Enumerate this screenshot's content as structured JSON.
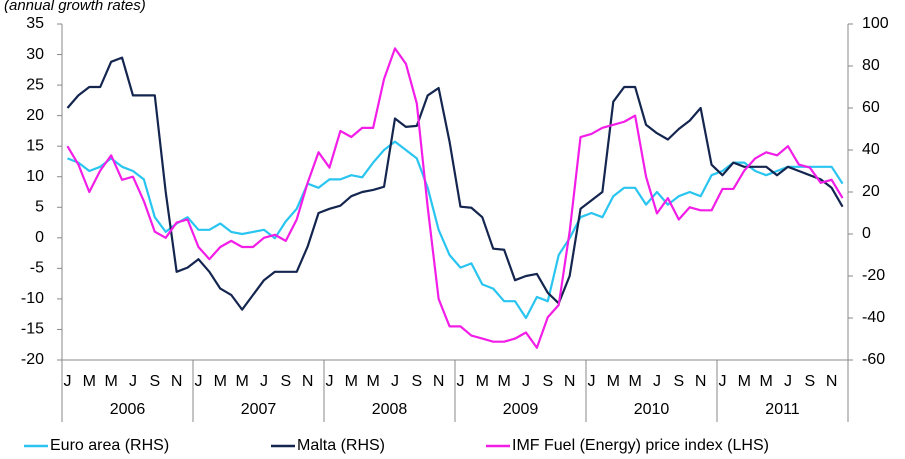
{
  "chart_data": {
    "type": "line",
    "subtitle": "(annual growth rates)",
    "categories": [
      "J",
      null,
      "M",
      null,
      "M",
      null,
      "J",
      null,
      "S",
      null,
      "N",
      null,
      "J",
      null,
      "M",
      null,
      "M",
      null,
      "J",
      null,
      "S",
      null,
      "N",
      null,
      "J",
      null,
      "M",
      null,
      "M",
      null,
      "J",
      null,
      "S",
      null,
      "N",
      null,
      "J",
      null,
      "M",
      null,
      "M",
      null,
      "J",
      null,
      "S",
      null,
      "N",
      null,
      "J",
      null,
      "M",
      null,
      "M",
      null,
      "J",
      null,
      "S",
      null,
      "N",
      null,
      "J",
      null,
      "M",
      null,
      "M",
      null,
      "J",
      null,
      "S",
      null,
      "N",
      null
    ],
    "groups": [
      "2006",
      "2007",
      "2008",
      "2009",
      "2010",
      "2011"
    ],
    "ylim": [
      -20,
      35
    ],
    "yticks": [
      -20,
      -15,
      -10,
      -5,
      0,
      5,
      10,
      15,
      20,
      25,
      30,
      35
    ],
    "y2lim": [
      -60,
      100
    ],
    "y2ticks": [
      -60,
      -40,
      -20,
      0,
      20,
      40,
      60,
      80,
      100
    ],
    "series": [
      {
        "name": "Euro area (RHS)",
        "color": "#29c5f0",
        "axis": "y2",
        "values": [
          36,
          34,
          30,
          32,
          36,
          32,
          30,
          26,
          8,
          1,
          5,
          8,
          2,
          2,
          5,
          1,
          0,
          1,
          2,
          -2,
          6,
          12,
          24,
          22,
          26,
          26,
          28,
          27,
          34,
          40,
          44,
          40,
          36,
          22,
          2,
          -10,
          -16,
          -14,
          -24,
          -26,
          -32,
          -32,
          -40,
          -30,
          -32,
          -10,
          -2,
          8,
          10,
          8,
          18,
          22,
          22,
          14,
          20,
          14,
          18,
          20,
          18,
          28,
          30,
          34,
          34,
          30,
          28,
          30,
          32,
          32,
          32,
          32,
          32,
          24
        ]
      },
      {
        "name": "Malta (RHS)",
        "color": "#14264f",
        "axis": "y2",
        "values": [
          60,
          66,
          70,
          70,
          82,
          84,
          66,
          66,
          66,
          20,
          -18,
          -16,
          -12,
          -18,
          -26,
          -29,
          -36,
          -29,
          -22,
          -18,
          -18,
          -18,
          -6,
          10,
          12,
          13.5,
          18,
          20,
          21,
          22.5,
          55,
          51,
          51.5,
          66,
          69.5,
          44,
          13,
          12.5,
          8,
          -7,
          -7.5,
          -22,
          -20,
          -19,
          -28,
          -33,
          -20,
          12,
          16,
          20,
          63,
          70,
          70,
          52,
          48,
          45,
          50,
          54,
          60,
          33,
          28,
          34,
          32,
          32,
          32,
          28,
          32,
          30,
          28,
          26,
          22,
          13
        ]
      },
      {
        "name": "IMF Fuel (Energy) price index (LHS)",
        "color": "#f21ee8",
        "axis": "y",
        "values": [
          15,
          12,
          7.5,
          11,
          13.5,
          9.5,
          10,
          6,
          1,
          0,
          2.5,
          3,
          -1.5,
          -3.5,
          -1.5,
          -0.5,
          -1.5,
          -1.5,
          0,
          0.5,
          -0.5,
          3,
          9,
          14,
          11.5,
          17.5,
          16.5,
          18,
          18,
          26,
          31,
          28.5,
          22,
          5,
          -10,
          -14.5,
          -14.5,
          -16,
          -16.5,
          -17,
          -17,
          -16.5,
          -15.5,
          -18,
          -13,
          -11,
          1,
          16.5,
          17,
          18,
          18.5,
          19,
          20,
          10,
          4,
          6.5,
          3,
          5,
          4.5,
          4.5,
          8,
          8,
          11,
          13,
          14,
          13.5,
          15,
          12,
          11.5,
          9,
          9.5,
          6.5
        ]
      }
    ]
  }
}
